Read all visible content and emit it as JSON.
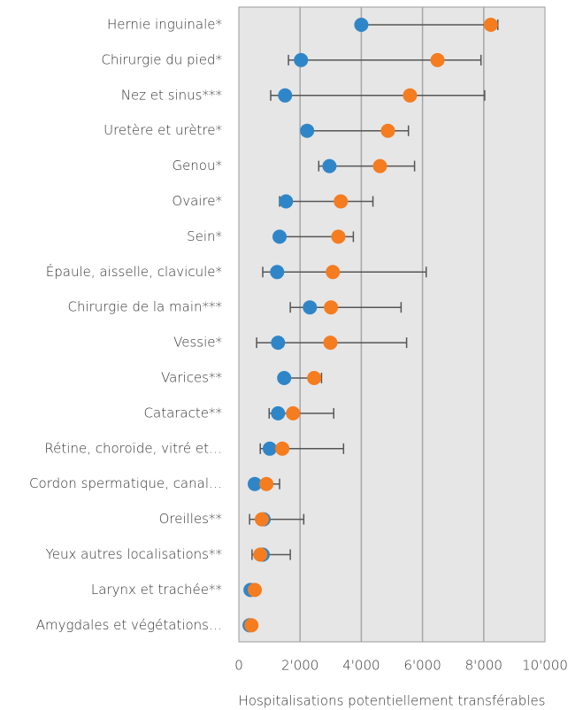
{
  "chart_data": {
    "type": "dot-range",
    "x_label": "Hospitalisations potentiellement transférables",
    "categories": [
      "Hernie inguinale*",
      "Chirurgie du pied*",
      "Nez et sinus***",
      "Uretère et urètre*",
      "Genou*",
      "Ovaire*",
      "Sein*",
      "Épaule, aisselle, clavicule*",
      "Chirurgie de la main***",
      "Vessie*",
      "Varices**",
      "Cataracte**",
      "Rétine, choroïde, vitré et…",
      "Cordon spermatique, canal…",
      "Oreilles**",
      "Yeux autres localisations**",
      "Larynx et trachée**",
      "Amygdales et végétations…"
    ],
    "series": [
      {
        "color": "#2e86c8",
        "values": [
          4000,
          2030,
          1510,
          2230,
          2960,
          1540,
          1330,
          1250,
          2320,
          1280,
          1480,
          1280,
          1010,
          520,
          810,
          780,
          380,
          350
        ]
      },
      {
        "color": "#f57c1f",
        "values": [
          8230,
          6490,
          5590,
          4870,
          4610,
          3330,
          3250,
          3070,
          3010,
          2990,
          2460,
          1770,
          1420,
          900,
          750,
          700,
          520,
          410
        ]
      }
    ],
    "error": {
      "color": "#555555",
      "low": [
        4000,
        1620,
        1040,
        2090,
        2610,
        1330,
        1330,
        780,
        1680,
        580,
        1480,
        990,
        700,
        380,
        350,
        430,
        380,
        290
      ],
      "high": [
        8460,
        7910,
        8030,
        5540,
        5740,
        4380,
        3740,
        6120,
        5300,
        5480,
        2700,
        3100,
        3420,
        1330,
        2120,
        1680,
        520,
        520
      ]
    },
    "xlim": [
      0,
      10000
    ],
    "xticks": [
      0,
      {
        "value": 2000,
        "label": "2'000"
      },
      {
        "value": 4000,
        "label": "4'000"
      },
      {
        "value": 6000,
        "label": "6'000"
      },
      {
        "value": 8000,
        "label": "8'000"
      },
      {
        "value": 10000,
        "label": "10'000"
      }
    ],
    "grid": true
  }
}
